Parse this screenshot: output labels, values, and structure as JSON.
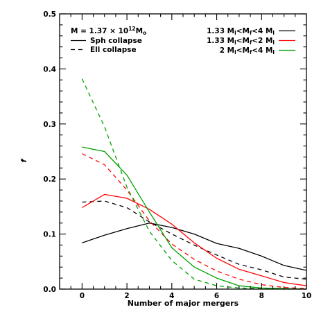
{
  "chart_data": {
    "type": "line",
    "xlabel": "Number of major mergers",
    "ylabel": "f",
    "xlim": [
      -1,
      10
    ],
    "ylim": [
      0,
      0.5
    ],
    "xticks": [
      0,
      2,
      4,
      6,
      8,
      10
    ],
    "yticks": [
      "0.0",
      "0.1",
      "0.2",
      "0.3",
      "0.4",
      "0.5"
    ],
    "x": [
      0,
      1,
      2,
      3,
      4,
      5,
      6,
      7,
      8,
      9,
      10
    ],
    "annotation": {
      "mass_prefix": "M = 1.37 × 10",
      "mass_exponent": "12",
      "mass_unit": "M",
      "mass_unit_sub": "o"
    },
    "style_legend": [
      {
        "name": "Sph collapse",
        "dash": "solid"
      },
      {
        "name": "Ell collapse",
        "dash": "dashed"
      }
    ],
    "color_legend": [
      {
        "name": "1.33 M_l<M_f<4 M_l",
        "color": "#000000"
      },
      {
        "name": "1.33 M_l<M_f<2 M_l",
        "color": "#ff0000"
      },
      {
        "name": "2 M_l<M_f<4 M_l",
        "color": "#00a000"
      }
    ],
    "series": [
      {
        "color": "#000000",
        "dash": "solid",
        "values": [
          0.084,
          0.098,
          0.11,
          0.12,
          0.112,
          0.1,
          0.083,
          0.074,
          0.06,
          0.043,
          0.034
        ]
      },
      {
        "color": "#000000",
        "dash": "dashed",
        "values": [
          0.158,
          0.16,
          0.148,
          0.122,
          0.1,
          0.08,
          0.062,
          0.045,
          0.035,
          0.022,
          0.018
        ]
      },
      {
        "color": "#ff0000",
        "dash": "solid",
        "values": [
          0.148,
          0.172,
          0.165,
          0.145,
          0.118,
          0.084,
          0.056,
          0.036,
          0.024,
          0.012,
          0.006
        ]
      },
      {
        "color": "#ff0000",
        "dash": "dashed",
        "values": [
          0.246,
          0.226,
          0.18,
          0.124,
          0.082,
          0.054,
          0.033,
          0.018,
          0.008,
          0.003,
          0.001
        ]
      },
      {
        "color": "#00a000",
        "solid": true,
        "dash": "solid",
        "values": [
          0.258,
          0.25,
          0.207,
          0.14,
          0.075,
          0.04,
          0.02,
          0.006,
          0.002,
          0.001,
          0.0
        ]
      },
      {
        "color": "#00a000",
        "dash": "dashed",
        "values": [
          0.382,
          0.295,
          0.185,
          0.105,
          0.052,
          0.018,
          0.006,
          0.002,
          0.001,
          0.0,
          0.0
        ]
      }
    ]
  }
}
